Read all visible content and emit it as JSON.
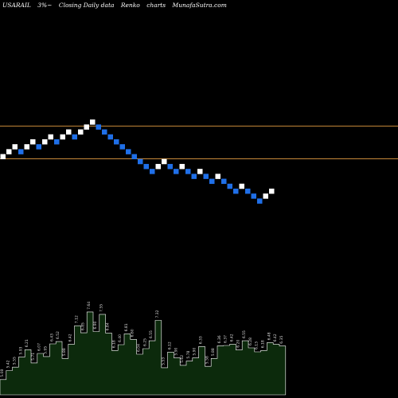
{
  "header": {
    "symbol": "USARAIL",
    "change": "3%~",
    "chart_kind": "Closing Daily data",
    "renko": "Renko",
    "charts_word": "charts",
    "site": "MunafaSutra.com"
  },
  "colors": {
    "background": "#000000",
    "up_brick": "#ffffff",
    "down_brick": "#1f6fe8",
    "hline": "#c8893a",
    "volume_fill": "#0c2a0c",
    "volume_line": "#ffffff",
    "volume_label": "#dddddd"
  },
  "chart_data": [
    {
      "type": "renko",
      "title": "USARAIL 3%~ Closing Daily data Renko charts",
      "brick_steps": [
        1,
        1,
        1,
        -1,
        1,
        1,
        -1,
        1,
        1,
        -1,
        1,
        1,
        -1,
        1,
        1,
        1,
        -1,
        -1,
        -1,
        -1,
        -1,
        -1,
        -1,
        -1,
        -1,
        -1,
        1,
        1,
        -1,
        -1,
        1,
        -1,
        -1,
        1,
        -1,
        -1,
        1,
        -1,
        -1,
        -1,
        1,
        -1,
        -1,
        -1,
        1,
        1
      ],
      "directions": [
        "up",
        "down"
      ],
      "horizontal_lines": [
        "upper resistance",
        "lower support"
      ],
      "grid": false,
      "legend": "none"
    },
    {
      "type": "bar",
      "series_name": "volume",
      "values": [
        5.08,
        5.42,
        5.55,
        5.93,
        6.21,
        5.71,
        6.07,
        5.95,
        6.43,
        6.52,
        5.88,
        6.42,
        7.12,
        6.85,
        7.64,
        6.9,
        7.55,
        6.84,
        6.18,
        6.4,
        6.81,
        6.6,
        6.04,
        6.25,
        6.55,
        7.32,
        5.53,
        6.12,
        5.9,
        5.62,
        5.78,
        5.9,
        6.33,
        5.58,
        5.88,
        6.36,
        6.37,
        6.42,
        6.2,
        6.55,
        6.28,
        6.13,
        6.18,
        6.48,
        6.42,
        6.35
      ],
      "data_labels": [
        "5.08",
        "5.42",
        "5.55",
        "5.93",
        "6.21",
        "5.71",
        "6.07",
        "5.95",
        "6.43",
        "6.52",
        "5.88",
        "6.42",
        "7.12",
        "6.85",
        "7.64",
        "6.90",
        "7.55",
        "6.84",
        "6.18",
        "6.40",
        "6.81",
        "6.60",
        "6.04",
        "6.25",
        "6.55",
        "7.32",
        "5.53",
        "6.12",
        "5.90",
        "5.62",
        "5.78",
        "5.90",
        "6.33",
        "5.58",
        "5.88",
        "6.36",
        "6.37",
        "6.42",
        "6.20",
        "6.55",
        "6.28",
        "6.13",
        "6.18",
        "6.48",
        "6.42",
        "6.35"
      ],
      "ylim": [
        4.5,
        8.0
      ]
    }
  ]
}
